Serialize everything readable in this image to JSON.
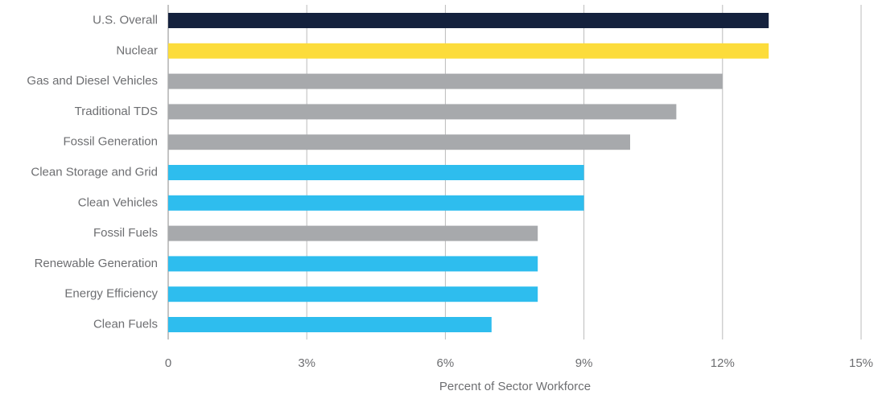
{
  "chart_data": {
    "type": "hbar",
    "x_label": "Percent of Sector Workforce",
    "categories": [
      "U.S. Overall",
      "Nuclear",
      "Gas and Diesel Vehicles",
      "Traditional TDS",
      "Fossil Generation",
      "Clean Storage and Grid",
      "Clean Vehicles",
      "Fossil Fuels",
      "Renewable Generation",
      "Energy Efficiency",
      "Clean Fuels"
    ],
    "values": [
      13,
      13,
      12,
      11,
      10,
      9,
      9,
      8,
      8,
      8,
      7
    ],
    "colors": [
      "#14213d",
      "#fcdc3b",
      "#a7a9ac",
      "#a7a9ac",
      "#a7a9ac",
      "#2ebdee",
      "#2ebdee",
      "#a7a9ac",
      "#2ebdee",
      "#2ebdee",
      "#2ebdee"
    ],
    "xlim": [
      0,
      15
    ],
    "xticks": [
      0,
      {
        "value": 3,
        "label": "3%"
      },
      {
        "value": 6,
        "label": "6%"
      },
      {
        "value": 9,
        "label": "9%"
      },
      {
        "value": 12,
        "label": "12%"
      },
      {
        "value": 15,
        "label": "15%"
      }
    ],
    "grid": true
  }
}
